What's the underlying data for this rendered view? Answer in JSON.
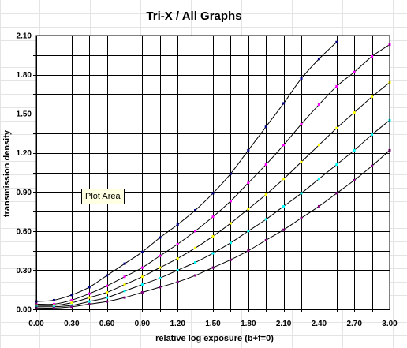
{
  "tooltip": "Plot Area",
  "chart_data": {
    "type": "line",
    "title": "Tri-X / All Graphs",
    "xlabel": "relative log exposure (b+f=0)",
    "ylabel": "transmission density",
    "xlim": [
      0,
      3.0
    ],
    "ylim": [
      0,
      2.1
    ],
    "xticks": [
      "0.00",
      "0.15",
      "0.30",
      "0.45",
      "0.60",
      "0.75",
      "0.90",
      "1.05",
      "1.20",
      "1.35",
      "1.50",
      "1.65",
      "1.80",
      "1.95",
      "2.10",
      "2.25",
      "2.40",
      "2.55",
      "2.70",
      "2.85",
      "3.00"
    ],
    "yticks": [
      "0.00",
      "0.15",
      "0.30",
      "0.45",
      "0.60",
      "0.75",
      "0.90",
      "1.05",
      "1.20",
      "1.35",
      "1.50",
      "1.65",
      "1.80",
      "1.95",
      "2.10"
    ],
    "xtick_labels_shown": [
      "0.00",
      "0.30",
      "0.60",
      "0.90",
      "1.20",
      "1.50",
      "1.80",
      "2.10",
      "2.40",
      "2.70",
      "3.00"
    ],
    "ytick_labels_shown": [
      "0.00",
      "0.30",
      "0.60",
      "0.90",
      "1.20",
      "1.50",
      "1.80",
      "2.10"
    ],
    "grid": true,
    "legend": "none",
    "series": [
      {
        "color": "#000000",
        "marker_color": "#000080",
        "x": [
          0.0,
          0.15,
          0.3,
          0.45,
          0.6,
          0.75,
          0.9,
          1.05,
          1.2,
          1.35,
          1.5,
          1.65,
          1.8,
          1.95,
          2.1,
          2.25,
          2.4,
          2.55
        ],
        "y": [
          0.06,
          0.07,
          0.11,
          0.17,
          0.26,
          0.35,
          0.44,
          0.55,
          0.65,
          0.76,
          0.89,
          1.04,
          1.22,
          1.4,
          1.58,
          1.77,
          1.92,
          2.05
        ]
      },
      {
        "color": "#000000",
        "marker_color": "#ff00ff",
        "x": [
          0.0,
          0.15,
          0.3,
          0.45,
          0.6,
          0.75,
          0.9,
          1.05,
          1.2,
          1.35,
          1.5,
          1.65,
          1.8,
          1.95,
          2.1,
          2.25,
          2.4,
          2.55,
          2.7,
          2.85,
          3.0
        ],
        "y": [
          0.04,
          0.04,
          0.07,
          0.12,
          0.18,
          0.25,
          0.32,
          0.41,
          0.5,
          0.6,
          0.71,
          0.83,
          0.97,
          1.11,
          1.26,
          1.42,
          1.57,
          1.71,
          1.82,
          1.94,
          2.03
        ]
      },
      {
        "color": "#000000",
        "marker_color": "#ffff00",
        "x": [
          0.0,
          0.15,
          0.3,
          0.45,
          0.6,
          0.75,
          0.9,
          1.05,
          1.2,
          1.35,
          1.5,
          1.65,
          1.8,
          1.95,
          2.1,
          2.25,
          2.4,
          2.55,
          2.7,
          2.85,
          3.0
        ],
        "y": [
          0.03,
          0.03,
          0.05,
          0.09,
          0.13,
          0.19,
          0.25,
          0.32,
          0.39,
          0.47,
          0.56,
          0.66,
          0.77,
          0.88,
          1.0,
          1.13,
          1.26,
          1.39,
          1.51,
          1.63,
          1.74
        ]
      },
      {
        "color": "#000000",
        "marker_color": "#00ffff",
        "x": [
          0.0,
          0.15,
          0.3,
          0.45,
          0.6,
          0.75,
          0.9,
          1.05,
          1.2,
          1.35,
          1.5,
          1.65,
          1.8,
          1.95,
          2.1,
          2.25,
          2.4,
          2.55,
          2.7,
          2.85,
          3.0
        ],
        "y": [
          0.02,
          0.02,
          0.03,
          0.06,
          0.09,
          0.14,
          0.19,
          0.24,
          0.3,
          0.36,
          0.43,
          0.51,
          0.6,
          0.69,
          0.79,
          0.89,
          1.0,
          1.11,
          1.22,
          1.34,
          1.45
        ]
      },
      {
        "color": "#000000",
        "marker_color": "#800080",
        "x": [
          0.0,
          0.15,
          0.3,
          0.45,
          0.6,
          0.75,
          0.9,
          1.05,
          1.2,
          1.35,
          1.5,
          1.65,
          1.8,
          1.95,
          2.1,
          2.25,
          2.4,
          2.55,
          2.7,
          2.85,
          3.0
        ],
        "y": [
          0.01,
          0.01,
          0.02,
          0.04,
          0.06,
          0.09,
          0.13,
          0.17,
          0.21,
          0.26,
          0.32,
          0.38,
          0.45,
          0.53,
          0.61,
          0.7,
          0.79,
          0.89,
          0.99,
          1.1,
          1.22
        ]
      }
    ]
  }
}
